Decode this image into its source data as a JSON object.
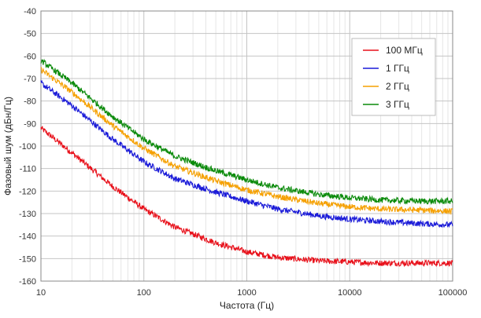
{
  "chart_data": {
    "type": "line",
    "xlabel": "Частота (Гц)",
    "ylabel": "Фазовый шум (дБн/Гц)",
    "xscale": "log",
    "xlim": [
      10,
      100000
    ],
    "ylim": [
      -160,
      -40
    ],
    "xticks": [
      10,
      100,
      1000,
      10000,
      100000
    ],
    "xtick_labels": [
      "10",
      "100",
      "1000",
      "10000",
      "100000"
    ],
    "yticks": [
      -40,
      -50,
      -60,
      -70,
      -80,
      -90,
      -100,
      -110,
      -120,
      -130,
      -140,
      -150,
      -160
    ],
    "ytick_labels": [
      "-40",
      "-50",
      "-60",
      "-70",
      "-80",
      "-90",
      "-100",
      "-110",
      "-120",
      "-130",
      "-140",
      "-150",
      "-160"
    ],
    "grid": true,
    "legend_position": "top-right",
    "x": [
      10,
      20,
      50,
      100,
      200,
      500,
      1000,
      2000,
      5000,
      10000,
      20000,
      50000,
      100000
    ],
    "series": [
      {
        "name": "100 МГц",
        "color": "#e8101a",
        "values": [
          -92,
          -103,
          -118,
          -128,
          -136,
          -143,
          -147,
          -149.5,
          -151,
          -151.5,
          -152,
          -152,
          -152
        ]
      },
      {
        "name": "1 ГГц",
        "color": "#1a1ad8",
        "values": [
          -72,
          -82,
          -97,
          -107,
          -114.5,
          -120.5,
          -124.5,
          -128,
          -131,
          -132.5,
          -133.5,
          -134.5,
          -135
        ]
      },
      {
        "name": "2 ГГц",
        "color": "#f5a000",
        "values": [
          -66,
          -76,
          -91,
          -101,
          -109,
          -115.5,
          -119.5,
          -122.5,
          -125.5,
          -127,
          -128,
          -128.5,
          -129
        ]
      },
      {
        "name": "3 ГГц",
        "color": "#0a8a0a",
        "values": [
          -62,
          -72,
          -87,
          -97,
          -104.5,
          -111,
          -115,
          -118.5,
          -121.5,
          -123,
          -124,
          -124.5,
          -124.5
        ]
      }
    ]
  }
}
